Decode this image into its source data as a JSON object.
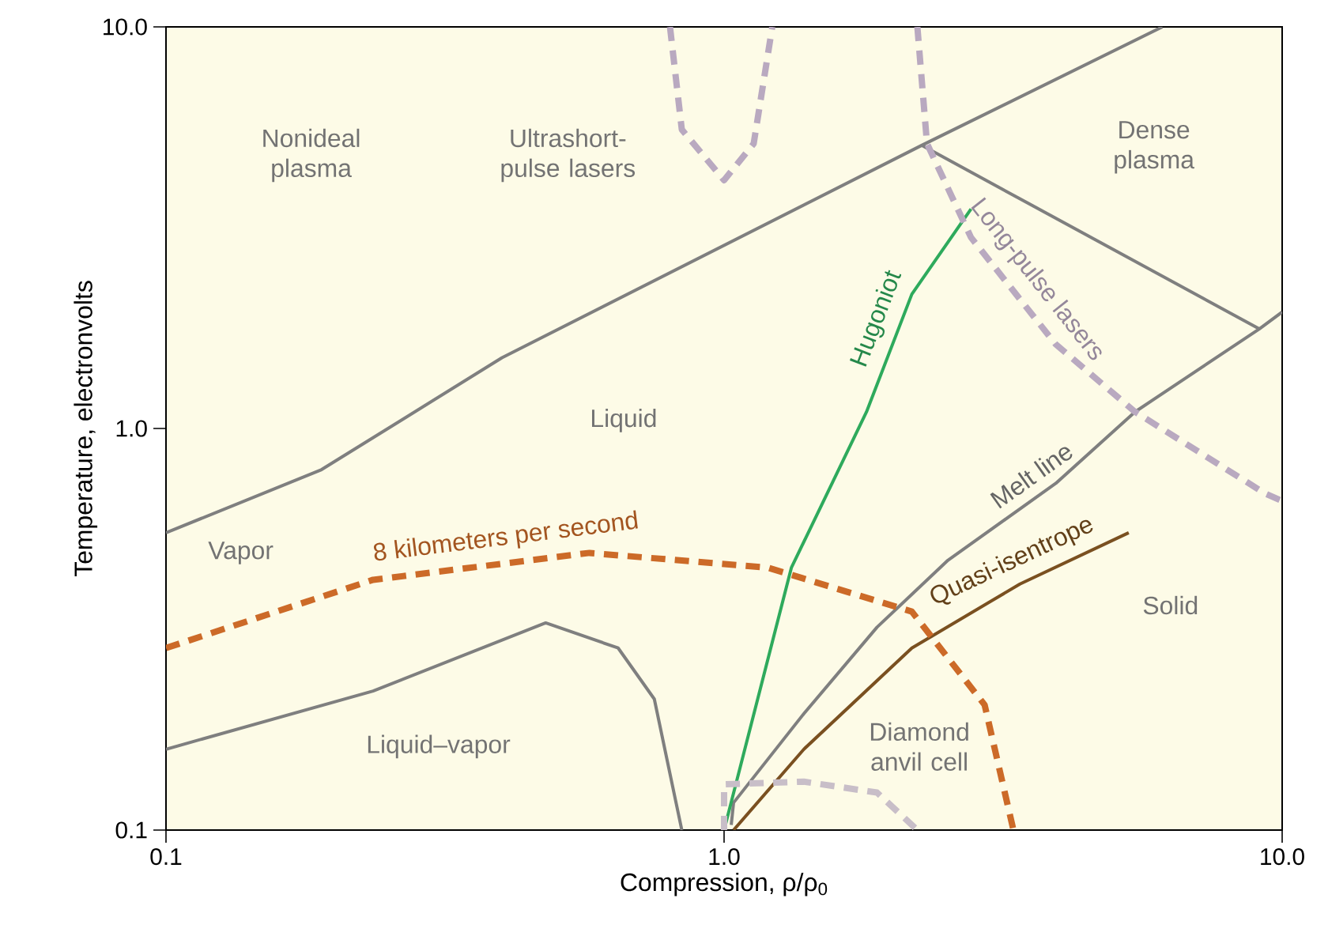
{
  "chart_data": {
    "type": "line",
    "xlabel": "Compression, ρ/ρ$_{0}$",
    "ylabel": "Temperature, electronvolts",
    "log": "xy",
    "xlim": [
      0.1,
      10
    ],
    "ylim": [
      0.1,
      10
    ],
    "xticks": [
      {
        "value": 0.1,
        "label": "0.1"
      },
      {
        "value": 1,
        "label": "1.0"
      },
      {
        "value": 10,
        "label": "10.0"
      }
    ],
    "yticks": [
      {
        "value": 0.1,
        "label": "0.1"
      },
      {
        "value": 1,
        "label": "1.0"
      },
      {
        "value": 10,
        "label": "10.0"
      }
    ],
    "grid": false,
    "series": [
      {
        "color": "#7f7f7f",
        "x": [
          0.1,
          0.19,
          0.4,
          2.26,
          6.1
        ],
        "values": [
          0.55,
          0.79,
          1.5,
          5.07,
          10
        ]
      },
      {
        "color": "#7f7f7f",
        "x": [
          2.26,
          9.1
        ],
        "values": [
          5.07,
          1.77
        ]
      },
      {
        "name": "Melt line",
        "color": "#7f7f7f",
        "x": [
          1.03,
          1.04,
          1.39,
          1.88,
          2.52,
          3.93,
          5.45,
          9.1,
          10
        ],
        "values": [
          0.103,
          0.117,
          0.195,
          0.32,
          0.47,
          0.73,
          1.1,
          1.77,
          1.95
        ]
      },
      {
        "color": "#7f7f7f",
        "x": [
          0.1,
          0.235,
          0.479,
          0.646,
          0.75,
          0.84
        ],
        "values": [
          0.159,
          0.222,
          0.328,
          0.284,
          0.212,
          0.1
        ]
      },
      {
        "name": "Hugoniot",
        "color": "#2eaa5c",
        "x": [
          1.0,
          1.32,
          1.8,
          2.17,
          2.77
        ],
        "values": [
          0.1,
          0.45,
          1.1,
          2.16,
          3.52
        ]
      },
      {
        "name": "Quasi-isentrope",
        "color": "#7a5020",
        "x": [
          1.04,
          1.39,
          2.17,
          3.39,
          5.31
        ],
        "values": [
          0.1,
          0.159,
          0.284,
          0.41,
          0.55
        ]
      },
      {
        "name": "8 kilometers per second",
        "color": "#cc6a28",
        "line_style": "dashed",
        "x": [
          0.1,
          0.235,
          0.574,
          1.2,
          2.17,
          2.93,
          3.3
        ],
        "values": [
          0.284,
          0.42,
          0.49,
          0.45,
          0.35,
          0.205,
          0.1
        ]
      },
      {
        "color": "#b9a9c0",
        "line_style": "dashed",
        "x": [
          0.8,
          0.84,
          1.0,
          1.13,
          1.22
        ],
        "values": [
          10,
          5.55,
          4.15,
          5.12,
          10
        ]
      },
      {
        "name": "Long-pulse lasers",
        "color": "#b9a9c0",
        "line_style": "dashed",
        "x": [
          2.22,
          2.31,
          2.77,
          3.93,
          5.45,
          9.3,
          10
        ],
        "values": [
          10,
          5.12,
          2.99,
          1.62,
          1.1,
          0.69,
          0.66
        ]
      },
      {
        "color": "#c8bec8",
        "line_style": "dashed",
        "x": [
          1.0,
          1.0,
          1.39,
          1.88,
          2.22
        ],
        "values": [
          0.1,
          0.13,
          0.132,
          0.124,
          0.1
        ]
      }
    ],
    "annotations": [
      "Nonideal plasma",
      "Dense plasma",
      "Liquid",
      "Vapor",
      "Liquid–vapor",
      "Solid",
      "Ultrashort-pulse lasers",
      "Diamond anvil cell"
    ]
  }
}
